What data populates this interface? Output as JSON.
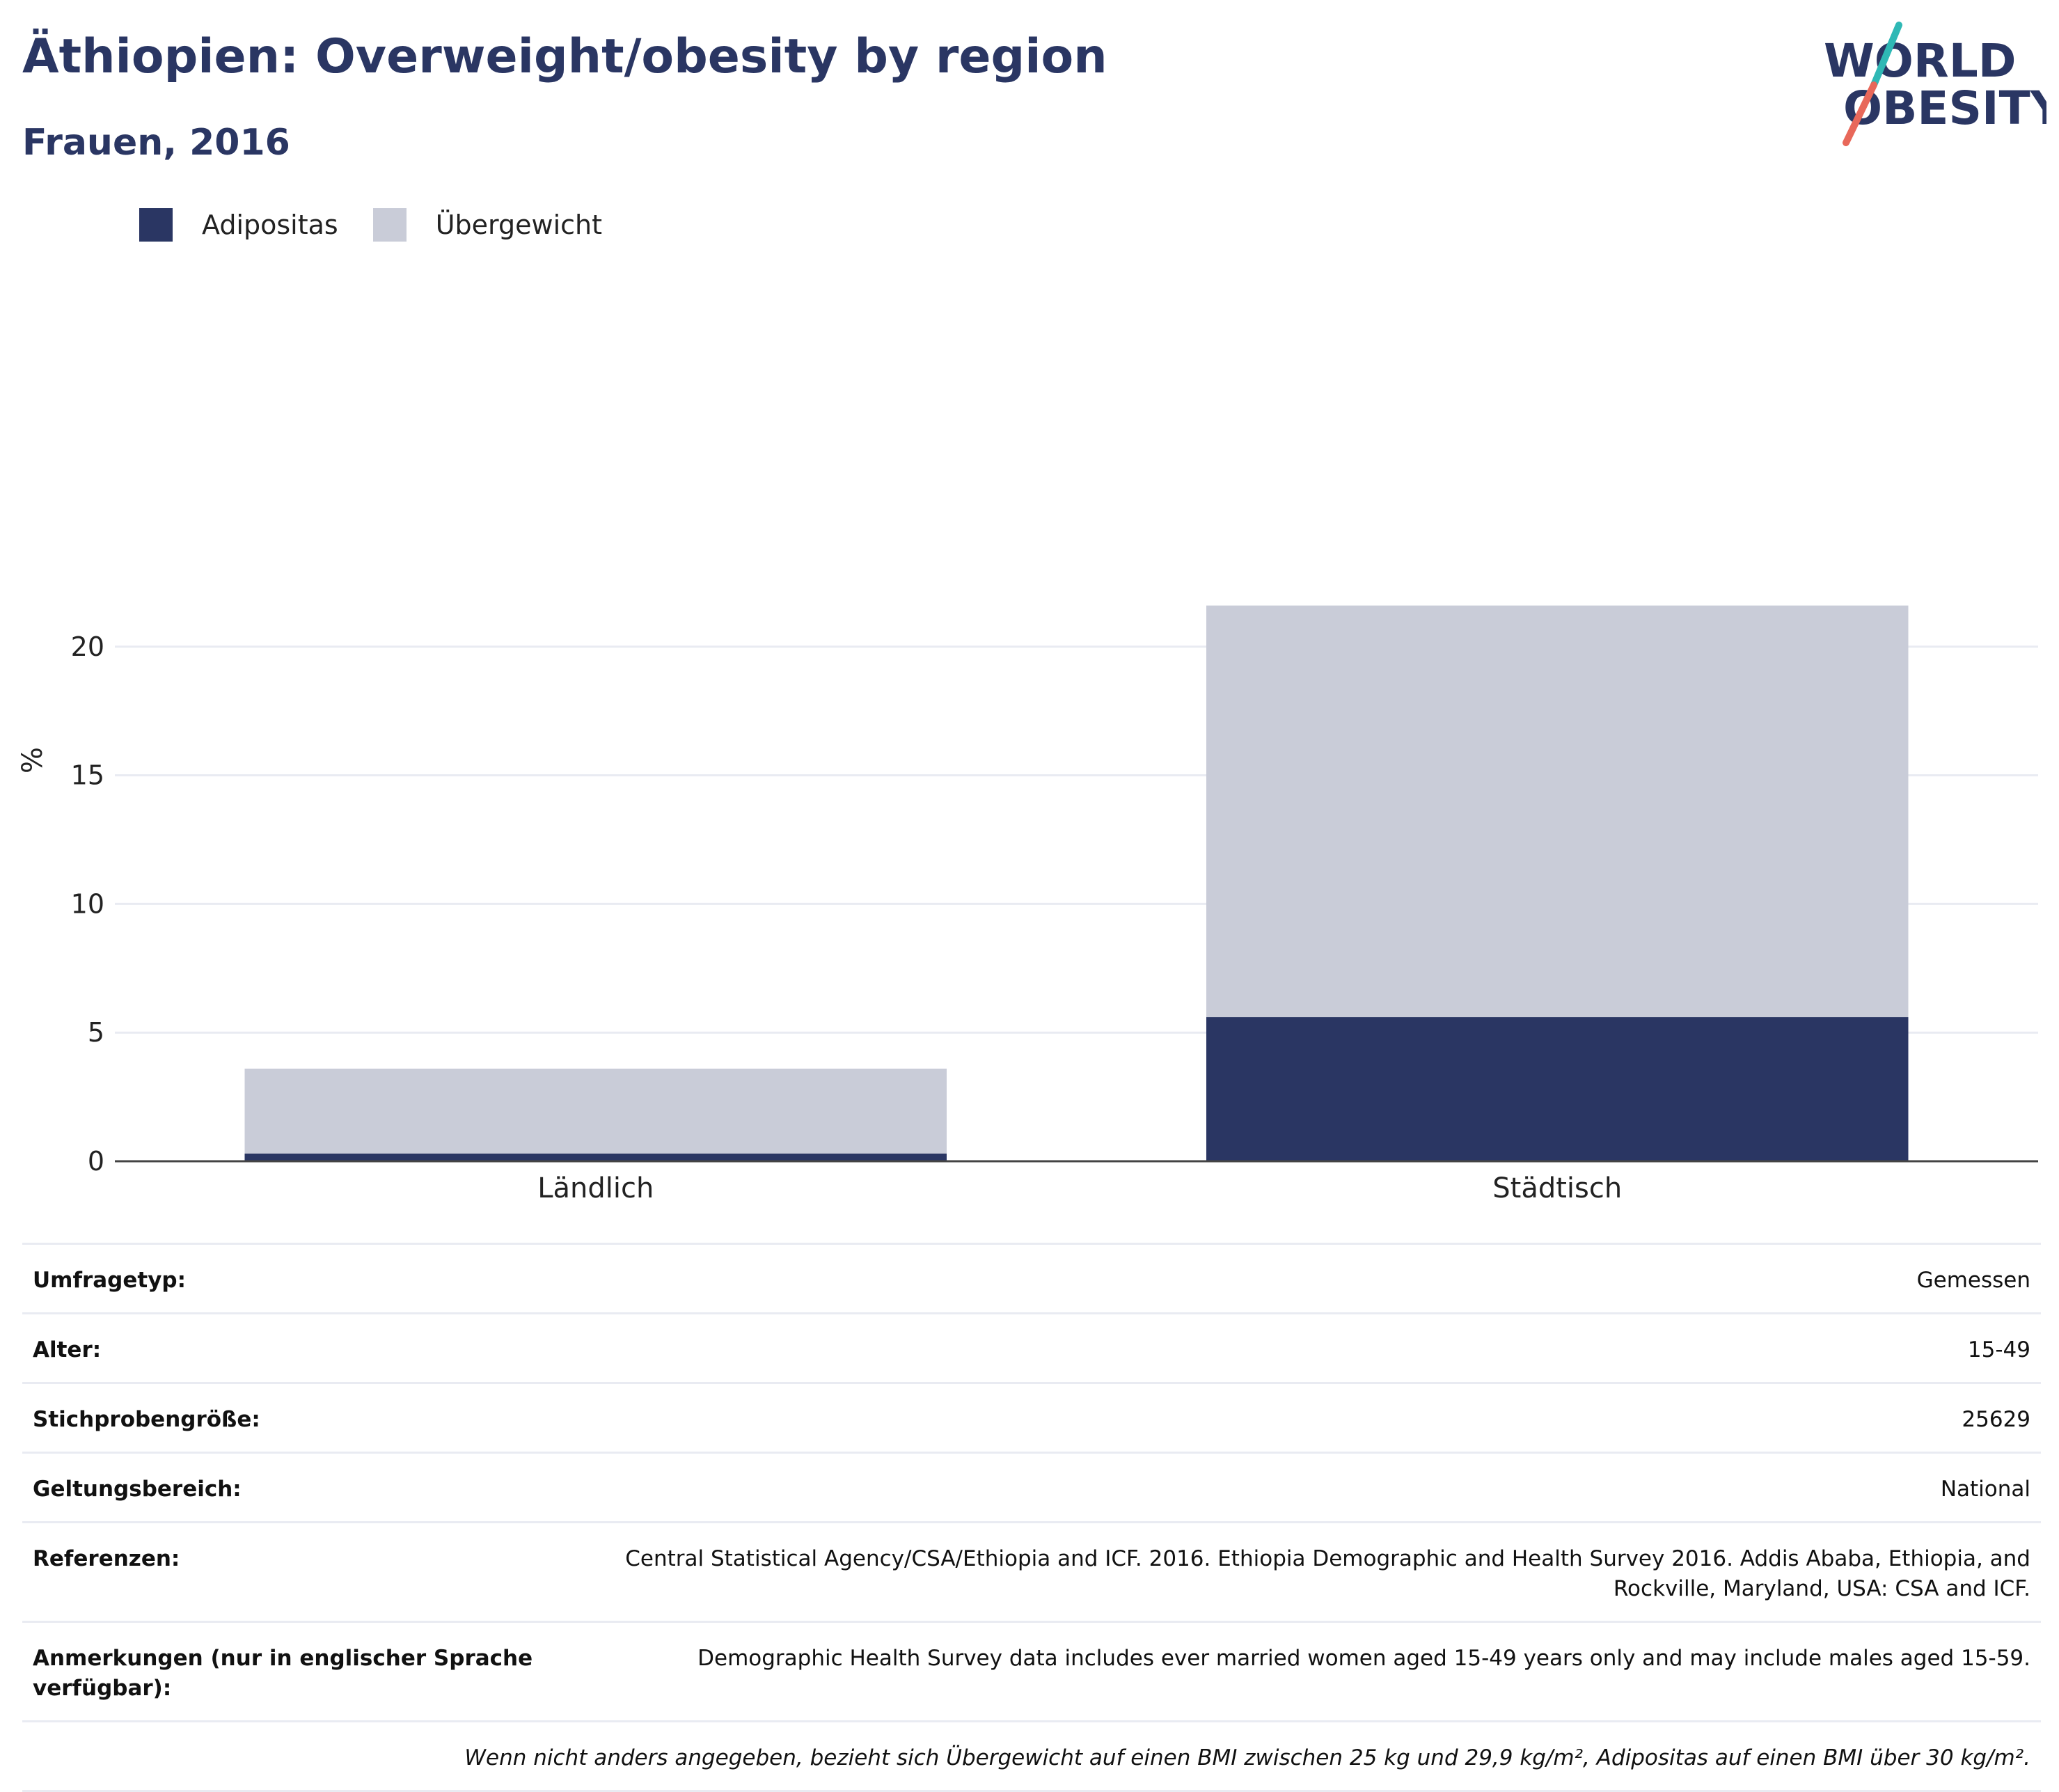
{
  "header": {
    "title": "Äthiopien: Overweight/obesity by region",
    "subtitle": "Frauen, 2016"
  },
  "logo": {
    "line1": "WORLD",
    "line2": "OBESITY",
    "colors": {
      "text": "#2a3663",
      "slash_top": "#2fb8b5",
      "slash_bottom": "#e8685a"
    }
  },
  "colors": {
    "obesity": "#2a3663",
    "overweight": "#c9ccd8",
    "grid": "#e9ebf2",
    "axis": "#444444"
  },
  "chart_data": {
    "type": "bar",
    "stacked": true,
    "categories": [
      "Ländlich",
      "Städtisch"
    ],
    "series": [
      {
        "name": "Adipositas",
        "values": [
          0.3,
          5.6
        ]
      },
      {
        "name": "Übergewicht",
        "values": [
          3.3,
          16.0
        ]
      }
    ],
    "title": "Äthiopien: Overweight/obesity by region",
    "subtitle": "Frauen, 2016",
    "xlabel": "",
    "ylabel": "%",
    "ylim": [
      0,
      23
    ],
    "yticks": [
      0,
      5,
      10,
      15,
      20
    ],
    "grid": true,
    "legend_position": "top-left"
  },
  "info": {
    "rows": [
      {
        "key": "Umfragetyp:",
        "value": "Gemessen"
      },
      {
        "key": "Alter:",
        "value": "15-49"
      },
      {
        "key": "Stichprobengröße:",
        "value": "25629"
      },
      {
        "key": "Geltungsbereich:",
        "value": "National"
      },
      {
        "key": "Referenzen:",
        "value": "Central Statistical Agency/CSA/Ethiopia and ICF. 2016. Ethiopia Demographic and Health Survey 2016. Addis Ababa, Ethiopia, and Rockville, Maryland, USA: CSA and ICF."
      },
      {
        "key": "Anmerkungen (nur in englischer Sprache verfügbar):",
        "value": "Demographic Health Survey data includes ever married women aged 15-49 years only and may include males aged 15-59."
      }
    ],
    "footnote": "Wenn nicht anders angegeben, bezieht sich Übergewicht auf einen BMI zwischen 25 kg und 29,9 kg/m², Adipositas auf einen BMI über 30 kg/m²."
  }
}
